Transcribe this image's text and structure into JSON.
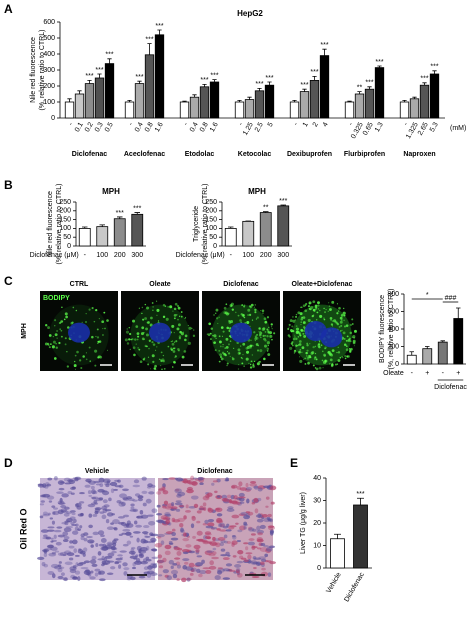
{
  "panel_labels": [
    "A",
    "B",
    "C",
    "D",
    "E"
  ],
  "micrographs": {
    "C": {
      "side_label": "MPH",
      "stain": "BODIPY",
      "labels": [
        "CTRL",
        "Oleate",
        "Diclofenac",
        "Oleate+Diclofenac"
      ]
    },
    "D": {
      "side_label": "Oil Red O",
      "labels": [
        "Vehicle",
        "Diclofenac"
      ]
    }
  },
  "chart_data": [
    {
      "type": "grouped-bar",
      "title": "HepG2",
      "ylabel": [
        "Nile red fluorescence",
        "(%, relative ratio to CTRL)"
      ],
      "unit": "(mM)",
      "ylim": [
        0,
        600
      ],
      "yticks": [
        0,
        100,
        200,
        300,
        400,
        500,
        600
      ],
      "groups": [
        {
          "name": "Diclofenac",
          "categories": [
            "-",
            "0.1",
            "0.2",
            "0.3",
            "0.5"
          ],
          "values": [
            100,
            150,
            215,
            250,
            340
          ],
          "errors": [
            20,
            20,
            20,
            25,
            30
          ],
          "significance": [
            null,
            null,
            "***",
            "***",
            "***"
          ],
          "colors": [
            "#ffffff",
            "#c8c8c8",
            "#8c8c8c",
            "#505050",
            "#000000"
          ]
        },
        {
          "name": "Aceclofenac",
          "categories": [
            "-",
            "0.4",
            "0.8",
            "1.6"
          ],
          "values": [
            100,
            215,
            395,
            520
          ],
          "errors": [
            10,
            15,
            70,
            30
          ],
          "significance": [
            null,
            "***",
            "***",
            "***"
          ],
          "colors": [
            "#ffffff",
            "#aaaaaa",
            "#555555",
            "#000000"
          ]
        },
        {
          "name": "Etodolac",
          "categories": [
            "-",
            "0.4",
            "0.8",
            "1.6"
          ],
          "values": [
            100,
            130,
            195,
            225
          ],
          "errors": [
            5,
            15,
            15,
            15
          ],
          "significance": [
            null,
            null,
            "***",
            "***"
          ],
          "colors": [
            "#ffffff",
            "#aaaaaa",
            "#555555",
            "#000000"
          ]
        },
        {
          "name": "Ketocolac",
          "categories": [
            "-",
            "1.25",
            "2.5",
            "5"
          ],
          "values": [
            100,
            115,
            170,
            205
          ],
          "errors": [
            10,
            15,
            15,
            20
          ],
          "significance": [
            null,
            null,
            "***",
            "***"
          ],
          "colors": [
            "#ffffff",
            "#aaaaaa",
            "#555555",
            "#000000"
          ]
        },
        {
          "name": "Dexibuprofen",
          "categories": [
            "-",
            "1",
            "2",
            "4"
          ],
          "values": [
            100,
            165,
            235,
            390
          ],
          "errors": [
            10,
            15,
            25,
            40
          ],
          "significance": [
            null,
            "***",
            "***",
            "***"
          ],
          "colors": [
            "#ffffff",
            "#aaaaaa",
            "#555555",
            "#000000"
          ]
        },
        {
          "name": "Flurbiprofen",
          "categories": [
            "-",
            "0.325",
            "0.65",
            "1.3"
          ],
          "values": [
            100,
            150,
            180,
            315
          ],
          "errors": [
            5,
            15,
            15,
            10
          ],
          "significance": [
            null,
            "**",
            "***",
            "***"
          ],
          "colors": [
            "#ffffff",
            "#aaaaaa",
            "#555555",
            "#000000"
          ]
        },
        {
          "name": "Naproxen",
          "categories": [
            "-",
            "1.325",
            "2.65",
            "5.3"
          ],
          "values": [
            100,
            120,
            205,
            275
          ],
          "errors": [
            10,
            10,
            15,
            20
          ],
          "significance": [
            null,
            null,
            "***",
            "***"
          ],
          "colors": [
            "#ffffff",
            "#aaaaaa",
            "#555555",
            "#000000"
          ]
        }
      ]
    },
    {
      "type": "bar",
      "title": "MPH",
      "ylabel": [
        "Nile red fluorescence",
        "(%, relative ratio to CTRL)"
      ],
      "xlabel": "Diclofenac (μM)",
      "ylim": [
        0,
        250
      ],
      "yticks": [
        0,
        50,
        100,
        150,
        200,
        250
      ],
      "categories": [
        "-",
        "100",
        "200",
        "300"
      ],
      "values": [
        100,
        110,
        155,
        180
      ],
      "errors": [
        8,
        10,
        10,
        10
      ],
      "significance": [
        null,
        null,
        "***",
        "***"
      ],
      "colors": [
        "#ffffff",
        "#c8c8c8",
        "#8c8c8c",
        "#555555"
      ]
    },
    {
      "type": "bar",
      "title": "MPH",
      "ylabel": [
        "Triglyceride",
        "(%, relative ratio to CTRL)"
      ],
      "xlabel": "Diclofenac (μM)",
      "ylim": [
        0,
        250
      ],
      "yticks": [
        0,
        50,
        100,
        150,
        200,
        250
      ],
      "categories": [
        "-",
        "100",
        "200",
        "300"
      ],
      "values": [
        100,
        140,
        190,
        228
      ],
      "errors": [
        8,
        2,
        5,
        5
      ],
      "significance": [
        null,
        null,
        "**",
        "***"
      ],
      "colors": [
        "#ffffff",
        "#c8c8c8",
        "#8c8c8c",
        "#555555"
      ]
    },
    {
      "type": "bar",
      "ylabel": [
        "BODIPY fluorescence",
        "(%, relative ratio to CTRL)"
      ],
      "category_row_label": "Oleate",
      "group_label": "Diclofenac",
      "ylim": [
        0,
        800
      ],
      "yticks": [
        0,
        200,
        400,
        600,
        800
      ],
      "categories": [
        "-",
        "+",
        "-",
        "+"
      ],
      "values": [
        100,
        175,
        250,
        520
      ],
      "errors": [
        40,
        25,
        15,
        120
      ],
      "significance": [
        null,
        null,
        null,
        null
      ],
      "comparisons": [
        "*",
        "###"
      ],
      "colors": [
        "#ffffff",
        "#aaaaaa",
        "#777777",
        "#000000"
      ]
    },
    {
      "type": "bar",
      "ylabel": [
        "Liver TG (μg/g liver)"
      ],
      "ylim": [
        0,
        40
      ],
      "yticks": [
        0,
        10,
        20,
        30,
        40
      ],
      "categories": [
        "Vehicle",
        "Diclofenac"
      ],
      "values": [
        13,
        28
      ],
      "errors": [
        2,
        3
      ],
      "significance": [
        null,
        "***"
      ],
      "colors": [
        "#ffffff",
        "#333333"
      ]
    }
  ]
}
